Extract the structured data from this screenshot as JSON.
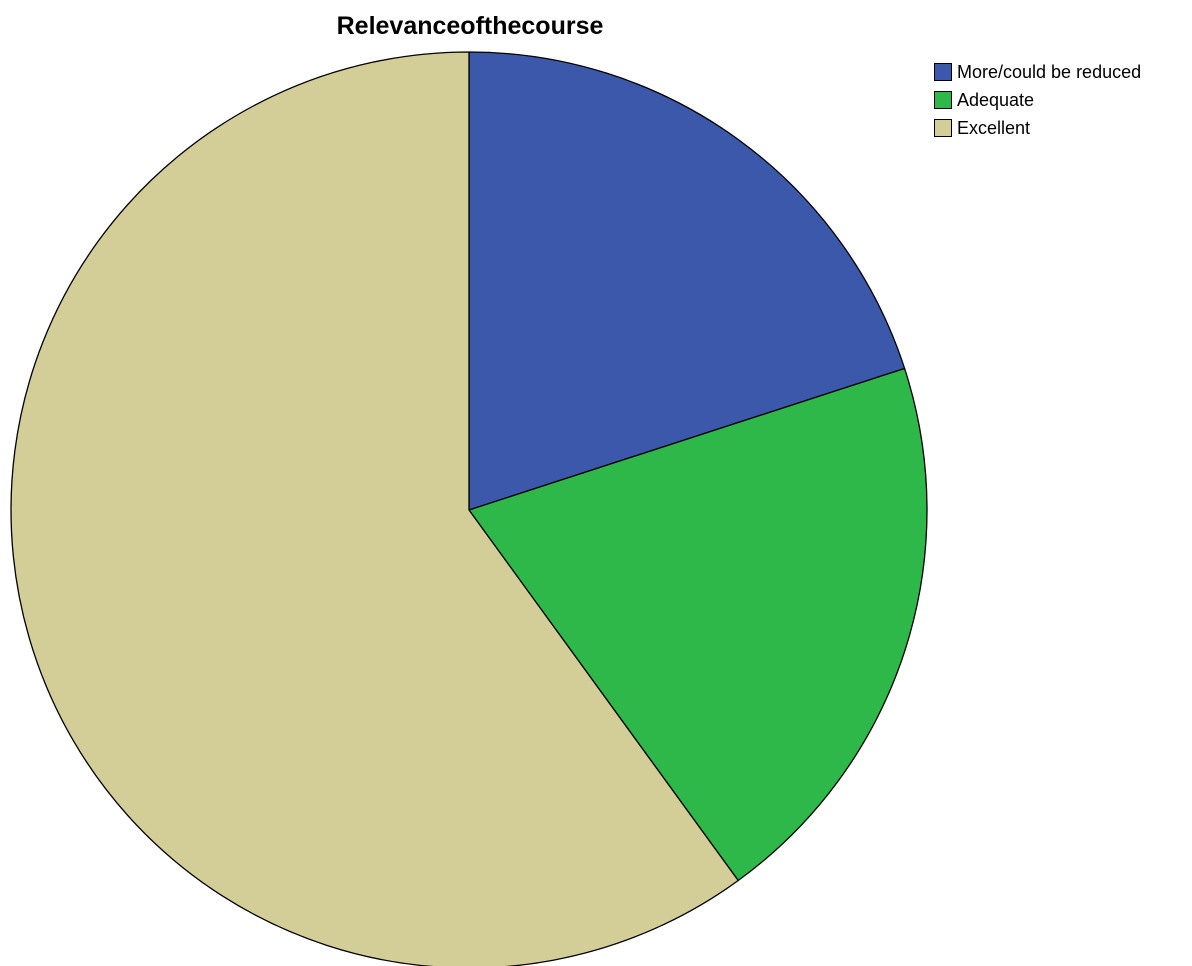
{
  "chart_data": {
    "type": "pie",
    "title": "Relevanceofthecourse",
    "categories": [
      "More/could be reduced",
      "Adequate",
      "Excellent"
    ],
    "values": [
      20,
      20,
      60
    ],
    "colors": [
      "#3c58aa",
      "#2eb84a",
      "#d3cd98"
    ],
    "start_angle_deg": 0,
    "direction": "clockwise",
    "legend_position": "top-right"
  }
}
